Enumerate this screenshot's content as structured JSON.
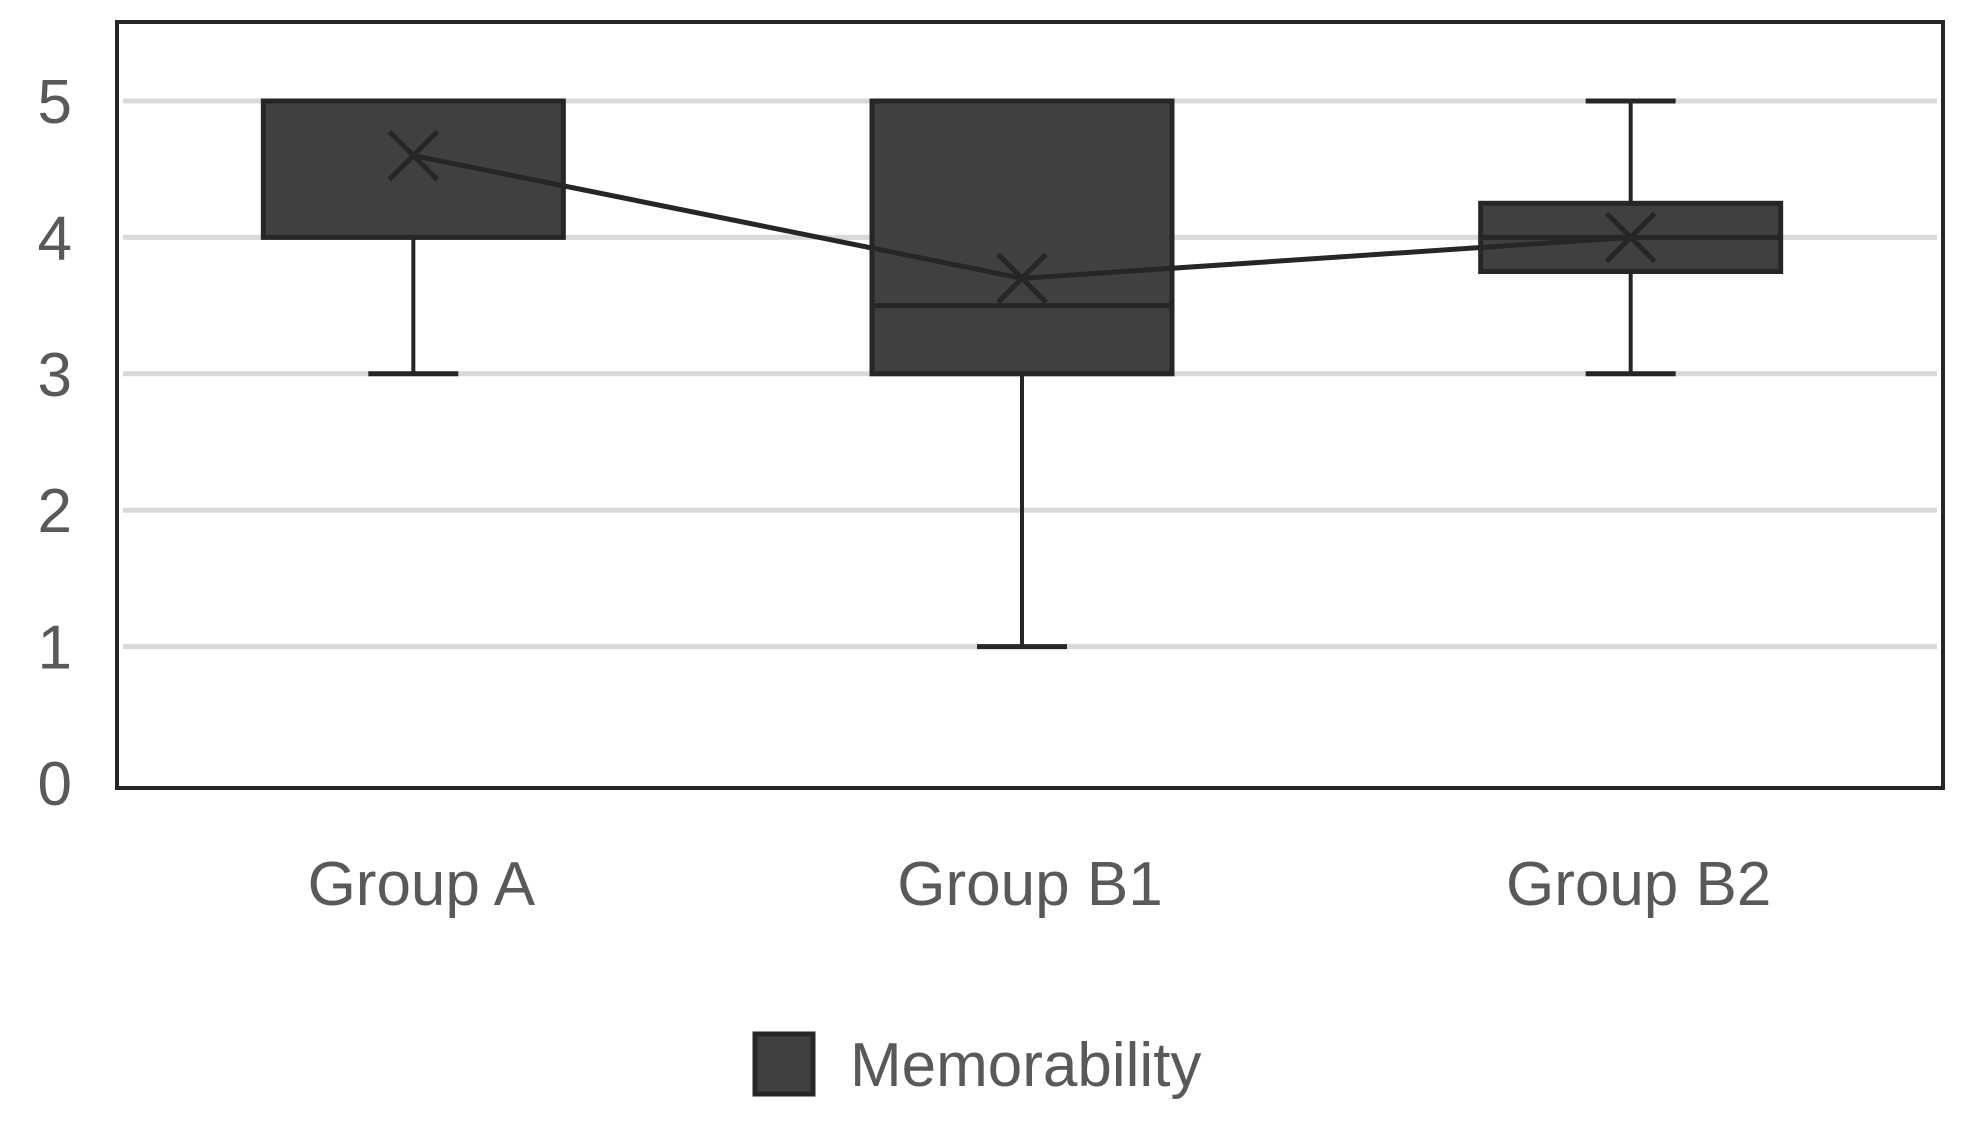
{
  "chart_data": {
    "type": "boxplot",
    "title": "",
    "xlabel": "",
    "ylabel": "",
    "ylim": [
      0,
      5.5
    ],
    "yticks": [
      0,
      1,
      2,
      3,
      4,
      5
    ],
    "ytick_labels": [
      "0",
      "1",
      "2",
      "3",
      "4",
      "5"
    ],
    "grid": true,
    "categories": [
      "Group A",
      "Group B1",
      "Group B2"
    ],
    "series": [
      {
        "name": "Memorability",
        "boxes": [
          {
            "category": "Group A",
            "min": 3,
            "q1": 4,
            "median": 5,
            "q3": 5,
            "max": 5,
            "mean": 4.6
          },
          {
            "category": "Group B1",
            "min": 1,
            "q1": 3,
            "median": 3.5,
            "q3": 5,
            "max": 5,
            "mean": 3.7
          },
          {
            "category": "Group B2",
            "min": 3,
            "q1": 3.75,
            "median": 4,
            "q3": 4.25,
            "max": 5,
            "mean": 4.0
          }
        ]
      }
    ],
    "mean_line": true,
    "legend": {
      "position": "bottom",
      "entries": [
        "Memorability"
      ]
    },
    "colors": {
      "box_fill": "#404040",
      "box_stroke": "#262626",
      "gridline": "#d9d9d9",
      "frame": "#262626",
      "text": "#595959"
    }
  }
}
